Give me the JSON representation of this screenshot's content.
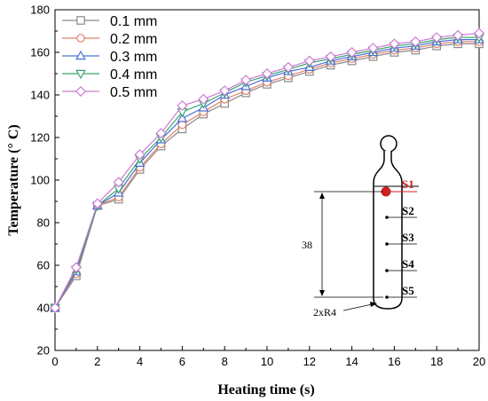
{
  "chart_data": {
    "type": "line",
    "title": "",
    "xlabel": "Heating time (s)",
    "ylabel": "Temperature (° C)",
    "xlim": [
      0,
      20
    ],
    "ylim": [
      20,
      180
    ],
    "xticks": [
      0,
      2,
      4,
      6,
      8,
      10,
      12,
      14,
      16,
      18,
      20
    ],
    "yticks": [
      20,
      40,
      60,
      80,
      100,
      120,
      140,
      160,
      180
    ],
    "grid": false,
    "legend_position": "top-left",
    "x": [
      0,
      1,
      2,
      3,
      4,
      5,
      6,
      7,
      8,
      9,
      10,
      11,
      12,
      13,
      14,
      15,
      16,
      17,
      18,
      19,
      20
    ],
    "series": [
      {
        "name": "0.1 mm",
        "marker": "square",
        "color": "#8a8a8a",
        "values": [
          40,
          55,
          88,
          91,
          105,
          116,
          124,
          131,
          136,
          141,
          145,
          148,
          151,
          154,
          156,
          158,
          160,
          161,
          163,
          164,
          164
        ]
      },
      {
        "name": "0.2 mm",
        "marker": "circle",
        "color": "#e0826a",
        "values": [
          40,
          56,
          88,
          92,
          106,
          117,
          126,
          132,
          138,
          142,
          146,
          149,
          152,
          155,
          157,
          159,
          161,
          162,
          164,
          165,
          165
        ]
      },
      {
        "name": "0.3 mm",
        "marker": "triangle-up",
        "color": "#4a70d8",
        "values": [
          40,
          57,
          88,
          94,
          108,
          119,
          129,
          134,
          140,
          144,
          148,
          151,
          153,
          156,
          158,
          160,
          162,
          163,
          165,
          166,
          166
        ]
      },
      {
        "name": "0.4 mm",
        "marker": "triangle-down",
        "color": "#3aa56a",
        "values": [
          40,
          58,
          88,
          96,
          110,
          120,
          132,
          136,
          141,
          146,
          149,
          152,
          155,
          157,
          159,
          161,
          163,
          164,
          166,
          167,
          167
        ]
      },
      {
        "name": "0.5 mm",
        "marker": "diamond",
        "color": "#d07ad8",
        "values": [
          40,
          59,
          89,
          99,
          112,
          122,
          135,
          138,
          142,
          147,
          150,
          153,
          156,
          158,
          160,
          162,
          164,
          165,
          167,
          168,
          169
        ]
      }
    ]
  },
  "inset": {
    "labels": [
      "S1",
      "S2",
      "S3",
      "S4",
      "S5"
    ],
    "dimension": "38",
    "radius_label": "2xR4",
    "highlight_color": "#cc2222"
  }
}
